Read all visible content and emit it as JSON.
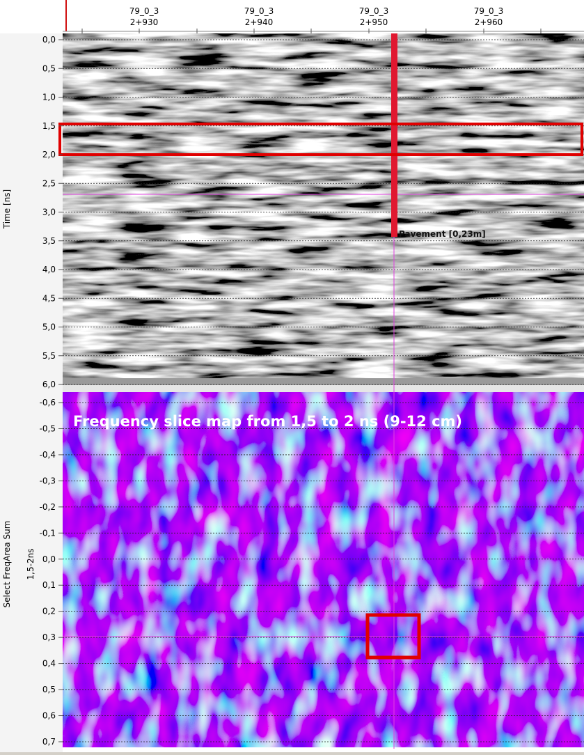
{
  "top_axis": {
    "labels": [
      {
        "line": "79_0_3",
        "station": "2+930"
      },
      {
        "line": "79_0_3",
        "station": "2+940"
      },
      {
        "line": "79_0_3",
        "station": "2+950"
      },
      {
        "line": "79_0_3",
        "station": "2+960"
      }
    ]
  },
  "radargram": {
    "y_label": "Time [ns]",
    "ticks": [
      "0,0",
      "0,5",
      "1,0",
      "1,5",
      "2,0",
      "2,5",
      "3,0",
      "3,5",
      "4,0",
      "4,5",
      "5,0",
      "5,5",
      "6,0"
    ],
    "annotation": "Pavement [0,23m]"
  },
  "slice_map": {
    "title": "Frequency slice map from 1,5 to 2 ns (9-12 cm)",
    "y_label": "Select FreqArea Sum",
    "y_sublabel": "1,5-2ns",
    "ticks": [
      "-0,6",
      "-0,5",
      "-0,4",
      "-0,3",
      "-0,2",
      "-0,1",
      "0,0",
      "0,1",
      "0,2",
      "0,3",
      "0,4",
      "0,5",
      "0,6",
      "0,7"
    ]
  }
}
